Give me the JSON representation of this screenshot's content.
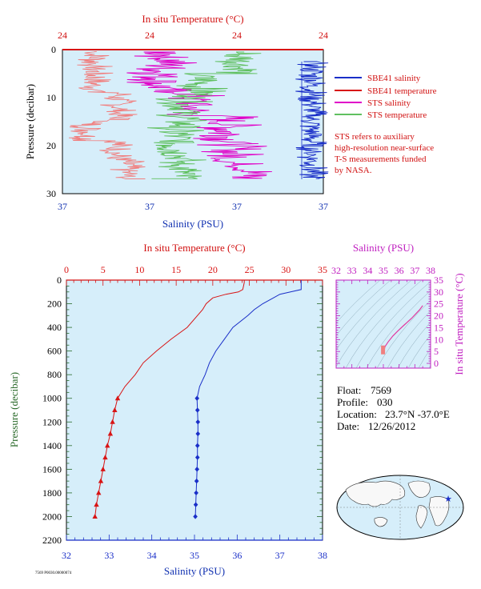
{
  "colors": {
    "bg_plot": "#d6eefa",
    "sbe_salinity": "#1a2fc8",
    "sbe_temperature": "#d81414",
    "sts_salinity": "#e000c8",
    "sts_temperature": "#60c060",
    "salmon": "#f08080",
    "ts_line": "#e03aa0"
  },
  "top_chart": {
    "top_axis_label": "In situ Temperature (°C)",
    "bottom_axis_label": "Salinity (PSU)",
    "y_label": "Pressure (decibar)",
    "top_ticks": [
      "24",
      "24",
      "24",
      "24"
    ],
    "bottom_ticks": [
      "37",
      "37",
      "37",
      "37"
    ],
    "y_ticks": [
      "0",
      "10",
      "20",
      "30"
    ],
    "legend": [
      {
        "label": "SBE41 salinity",
        "color": "#1a2fc8"
      },
      {
        "label": "SBE41 temperature",
        "color": "#d81414"
      },
      {
        "label": "STS salinity",
        "color": "#e000c8"
      },
      {
        "label": "STS temperature",
        "color": "#60c060"
      }
    ],
    "note": [
      "STS refers to auxiliary",
      "high-resolution near-surface",
      "T-S measurements funded",
      "by NASA."
    ]
  },
  "main_chart": {
    "top_axis_label": "In situ Temperature (°C)",
    "bottom_axis_label": "Salinity (PSU)",
    "y_label": "Pressure (decibar)",
    "top_ticks": [
      "0",
      "5",
      "10",
      "15",
      "20",
      "25",
      "30",
      "35"
    ],
    "bottom_ticks": [
      "32",
      "33",
      "34",
      "35",
      "36",
      "37",
      "38"
    ],
    "y_ticks": [
      "0",
      "200",
      "400",
      "600",
      "800",
      "1000",
      "1200",
      "1400",
      "1600",
      "1800",
      "2000",
      "2200"
    ]
  },
  "ts_chart": {
    "top_axis_label": "Salinity (PSU)",
    "right_axis_label": "In situ Temperature (°C)",
    "top_ticks": [
      "32",
      "33",
      "34",
      "35",
      "36",
      "37",
      "38"
    ],
    "right_ticks": [
      "35",
      "30",
      "25",
      "20",
      "15",
      "10",
      "5",
      "0"
    ]
  },
  "info": {
    "float_label": "Float:",
    "float_value": "7569",
    "profile_label": "Profile:",
    "profile_value": "030",
    "location_label": "Location:",
    "location_value": "23.7°N  -37.0°E",
    "date_label": "Date:",
    "date_value": "12/26/2012"
  },
  "footer": "7569 P0030.00000074",
  "chart_data": [
    {
      "type": "line",
      "title": "",
      "xlabel": "In situ Temperature (°C)",
      "xlabel2": "Salinity (PSU)",
      "ylabel": "Pressure (decibar)",
      "ylim": [
        30,
        0
      ],
      "series": [
        {
          "name": "SBE41 salinity",
          "note": "blue near-surface trace"
        },
        {
          "name": "SBE41 temperature",
          "note": "red near-surface trace"
        },
        {
          "name": "STS salinity",
          "note": "magenta high-resolution trace"
        },
        {
          "name": "STS temperature",
          "note": "green high-resolution trace"
        }
      ]
    },
    {
      "type": "line",
      "title": "",
      "xlabel": "Salinity (PSU)",
      "xlim": [
        32,
        38
      ],
      "x2label": "In situ Temperature (°C)",
      "x2lim": [
        0,
        35
      ],
      "ylabel": "Pressure (decibar)",
      "ylim": [
        2200,
        0
      ],
      "series": [
        {
          "name": "Temperature",
          "pressure": [
            0,
            20,
            50,
            80,
            100,
            120,
            150,
            200,
            250,
            300,
            400,
            500,
            600,
            700,
            800,
            900,
            1000,
            1100,
            1200,
            1300,
            1400,
            1500,
            1600,
            1700,
            1800,
            1900,
            2000
          ],
          "values": [
            24.3,
            24.3,
            24.2,
            24.1,
            23.5,
            21.8,
            20.0,
            19.1,
            18.6,
            17.9,
            16.5,
            14.3,
            12.3,
            10.5,
            9.4,
            8.0,
            7.0,
            6.6,
            6.3,
            6.0,
            5.6,
            5.3,
            5.0,
            4.7,
            4.4,
            4.1,
            3.9
          ],
          "markers_from_pressure": 1000
        },
        {
          "name": "Salinity",
          "pressure": [
            0,
            20,
            50,
            80,
            100,
            120,
            150,
            200,
            250,
            300,
            400,
            500,
            600,
            700,
            800,
            900,
            1000,
            1100,
            1200,
            1300,
            1400,
            1500,
            1600,
            1700,
            1800,
            1900,
            2000
          ],
          "values": [
            37.5,
            37.5,
            37.5,
            37.5,
            37.25,
            37.0,
            36.85,
            36.6,
            36.4,
            36.25,
            35.9,
            35.7,
            35.5,
            35.35,
            35.25,
            35.12,
            35.06,
            35.07,
            35.08,
            35.08,
            35.07,
            35.07,
            35.06,
            35.05,
            35.04,
            35.03,
            35.02
          ],
          "markers_from_pressure": 1000
        }
      ]
    },
    {
      "type": "line",
      "title": "",
      "xlabel": "Salinity (PSU)",
      "xlim": [
        32,
        38
      ],
      "ylabel": "In situ Temperature (°C)",
      "ylim": [
        -2,
        35
      ],
      "series": [
        {
          "name": "T-S",
          "x": [
            35.0,
            35.05,
            35.1,
            35.3,
            35.6,
            35.9,
            36.3,
            36.8,
            37.3,
            37.5
          ],
          "y": [
            4.0,
            5.5,
            7.0,
            9.0,
            11.5,
            13.5,
            16.0,
            19.0,
            22.5,
            24.3
          ]
        }
      ]
    }
  ]
}
